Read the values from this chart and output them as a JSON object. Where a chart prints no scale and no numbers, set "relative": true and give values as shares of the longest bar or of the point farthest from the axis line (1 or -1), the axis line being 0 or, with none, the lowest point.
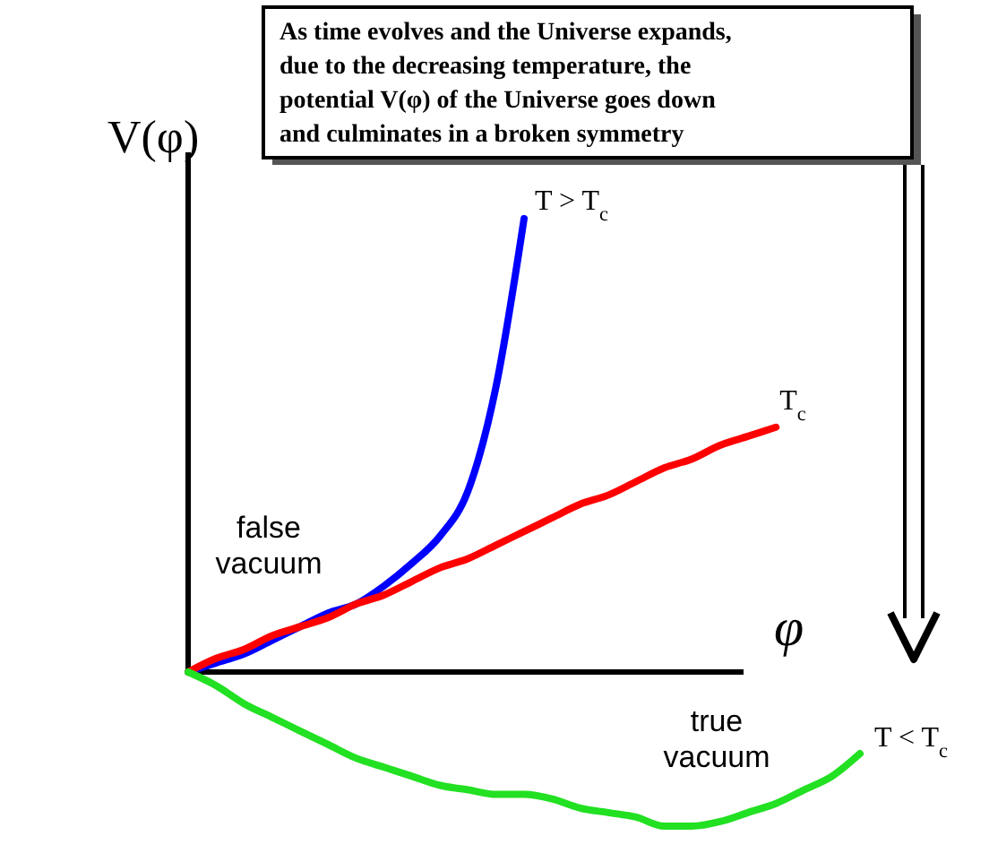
{
  "chart_data": {
    "type": "line",
    "relative": true,
    "xlabel": "φ",
    "ylabel": "V(φ)",
    "categories": [
      null,
      null,
      null,
      null,
      null,
      null,
      null,
      null,
      null,
      null,
      null,
      null,
      null,
      null,
      null,
      null,
      null,
      null,
      null,
      null,
      null,
      null,
      null,
      null,
      null
    ],
    "series": [
      {
        "name": "T > T$_{c}$",
        "color": "#0000ff",
        "values": [
          0,
          0.02,
          0.04,
          0.07,
          0.1,
          0.13,
          0.15,
          0.19,
          0.24,
          0.3,
          0.4,
          0.63,
          1.0,
          null,
          null,
          null,
          null,
          null,
          null,
          null,
          null,
          null,
          null,
          null,
          null
        ]
      },
      {
        "name": "T$_{c}$",
        "color": "#ff0000",
        "values": [
          0,
          0.03,
          0.05,
          0.08,
          0.1,
          0.12,
          0.15,
          0.17,
          0.2,
          0.23,
          0.25,
          0.28,
          0.31,
          0.34,
          0.37,
          0.39,
          0.42,
          0.45,
          0.47,
          0.5,
          0.52,
          0.54,
          null,
          null,
          null
        ]
      },
      {
        "name": "T < T$_{c}$",
        "color": "#22e022",
        "values": [
          0,
          -0.03,
          -0.07,
          -0.1,
          -0.13,
          -0.16,
          -0.19,
          -0.21,
          -0.23,
          -0.25,
          -0.26,
          -0.27,
          -0.27,
          -0.28,
          -0.3,
          -0.31,
          -0.32,
          -0.34,
          -0.34,
          -0.33,
          -0.31,
          -0.29,
          -0.26,
          -0.23,
          -0.18
        ]
      }
    ],
    "annotations": [
      "As time evolves and the Universe expands, due to the decreasing temperature, the potential V(φ) of the Universe goes down and culminates in a broken symmetry",
      "false vacuum",
      "true vacuum"
    ]
  }
}
